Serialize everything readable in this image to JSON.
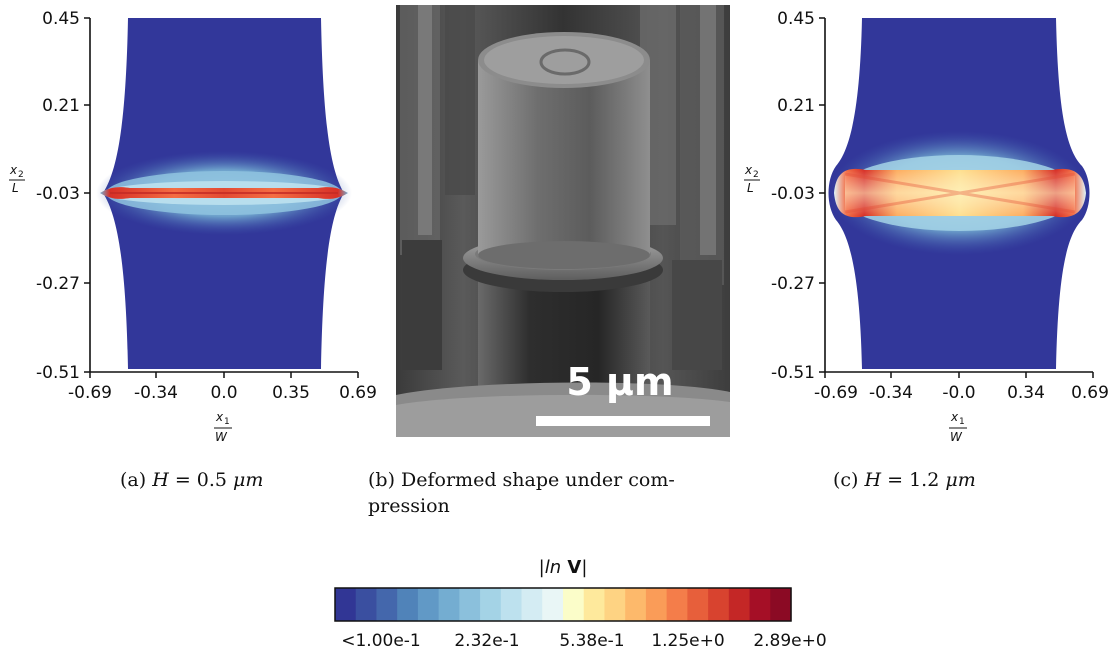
{
  "panel_a": {
    "y_ticks": [
      "0.45",
      "0.21",
      "-0.03",
      "-0.27",
      "-0.51"
    ],
    "x_ticks": [
      "-0.69",
      "-0.34",
      "0.0",
      "0.35",
      "0.69"
    ],
    "y_label_num": "x",
    "y_label_sub": "2",
    "y_label_den": "L",
    "x_label_num": "x",
    "x_label_sub": "1",
    "x_label_den": "W",
    "caption_prefix": "(a) ",
    "caption_var": "H",
    "caption_rest": " = 0.5 ",
    "caption_unit": "μm"
  },
  "panel_b": {
    "scale_text": "5 μm",
    "caption_line1": "(b) Deformed shape under com-",
    "caption_line2": "pression"
  },
  "panel_c": {
    "y_ticks": [
      "0.45",
      "0.21",
      "-0.03",
      "-0.27",
      "-0.51"
    ],
    "x_ticks": [
      "-0.69",
      "-0.34",
      "-0.0",
      "0.34",
      "0.69"
    ],
    "y_label_num": "x",
    "y_label_sub": "2",
    "y_label_den": "L",
    "x_label_num": "x",
    "x_label_sub": "1",
    "x_label_den": "W",
    "caption_prefix": "(c) ",
    "caption_var": "H",
    "caption_rest": " = 1.2 ",
    "caption_unit": "μm"
  },
  "colorbar": {
    "title_prefix": "|",
    "title_ln": "ln",
    "title_V": " V",
    "title_suffix": "|",
    "tick_labels": [
      "<1.00e-1",
      "2.32e-1",
      "5.38e-1",
      "1.25e+0",
      "2.89e+0"
    ],
    "colors": [
      "#313695",
      "#3a4fa0",
      "#4467ac",
      "#5083b9",
      "#6199c6",
      "#74add1",
      "#8bc0dc",
      "#a4d3e6",
      "#bde1ee",
      "#d4ecf3",
      "#e9f6f6",
      "#fbfdc9",
      "#fee99c",
      "#fed383",
      "#fdb96b",
      "#fa9c58",
      "#f47d4a",
      "#e75f3b",
      "#d8432f",
      "#c42726",
      "#a50f26",
      "#8b0a24"
    ]
  },
  "colors": {
    "field_base": "#32379a",
    "hot": "#d73027",
    "warm": "#fdae61",
    "cool": "#abd9e9",
    "mid": "#74add1"
  }
}
